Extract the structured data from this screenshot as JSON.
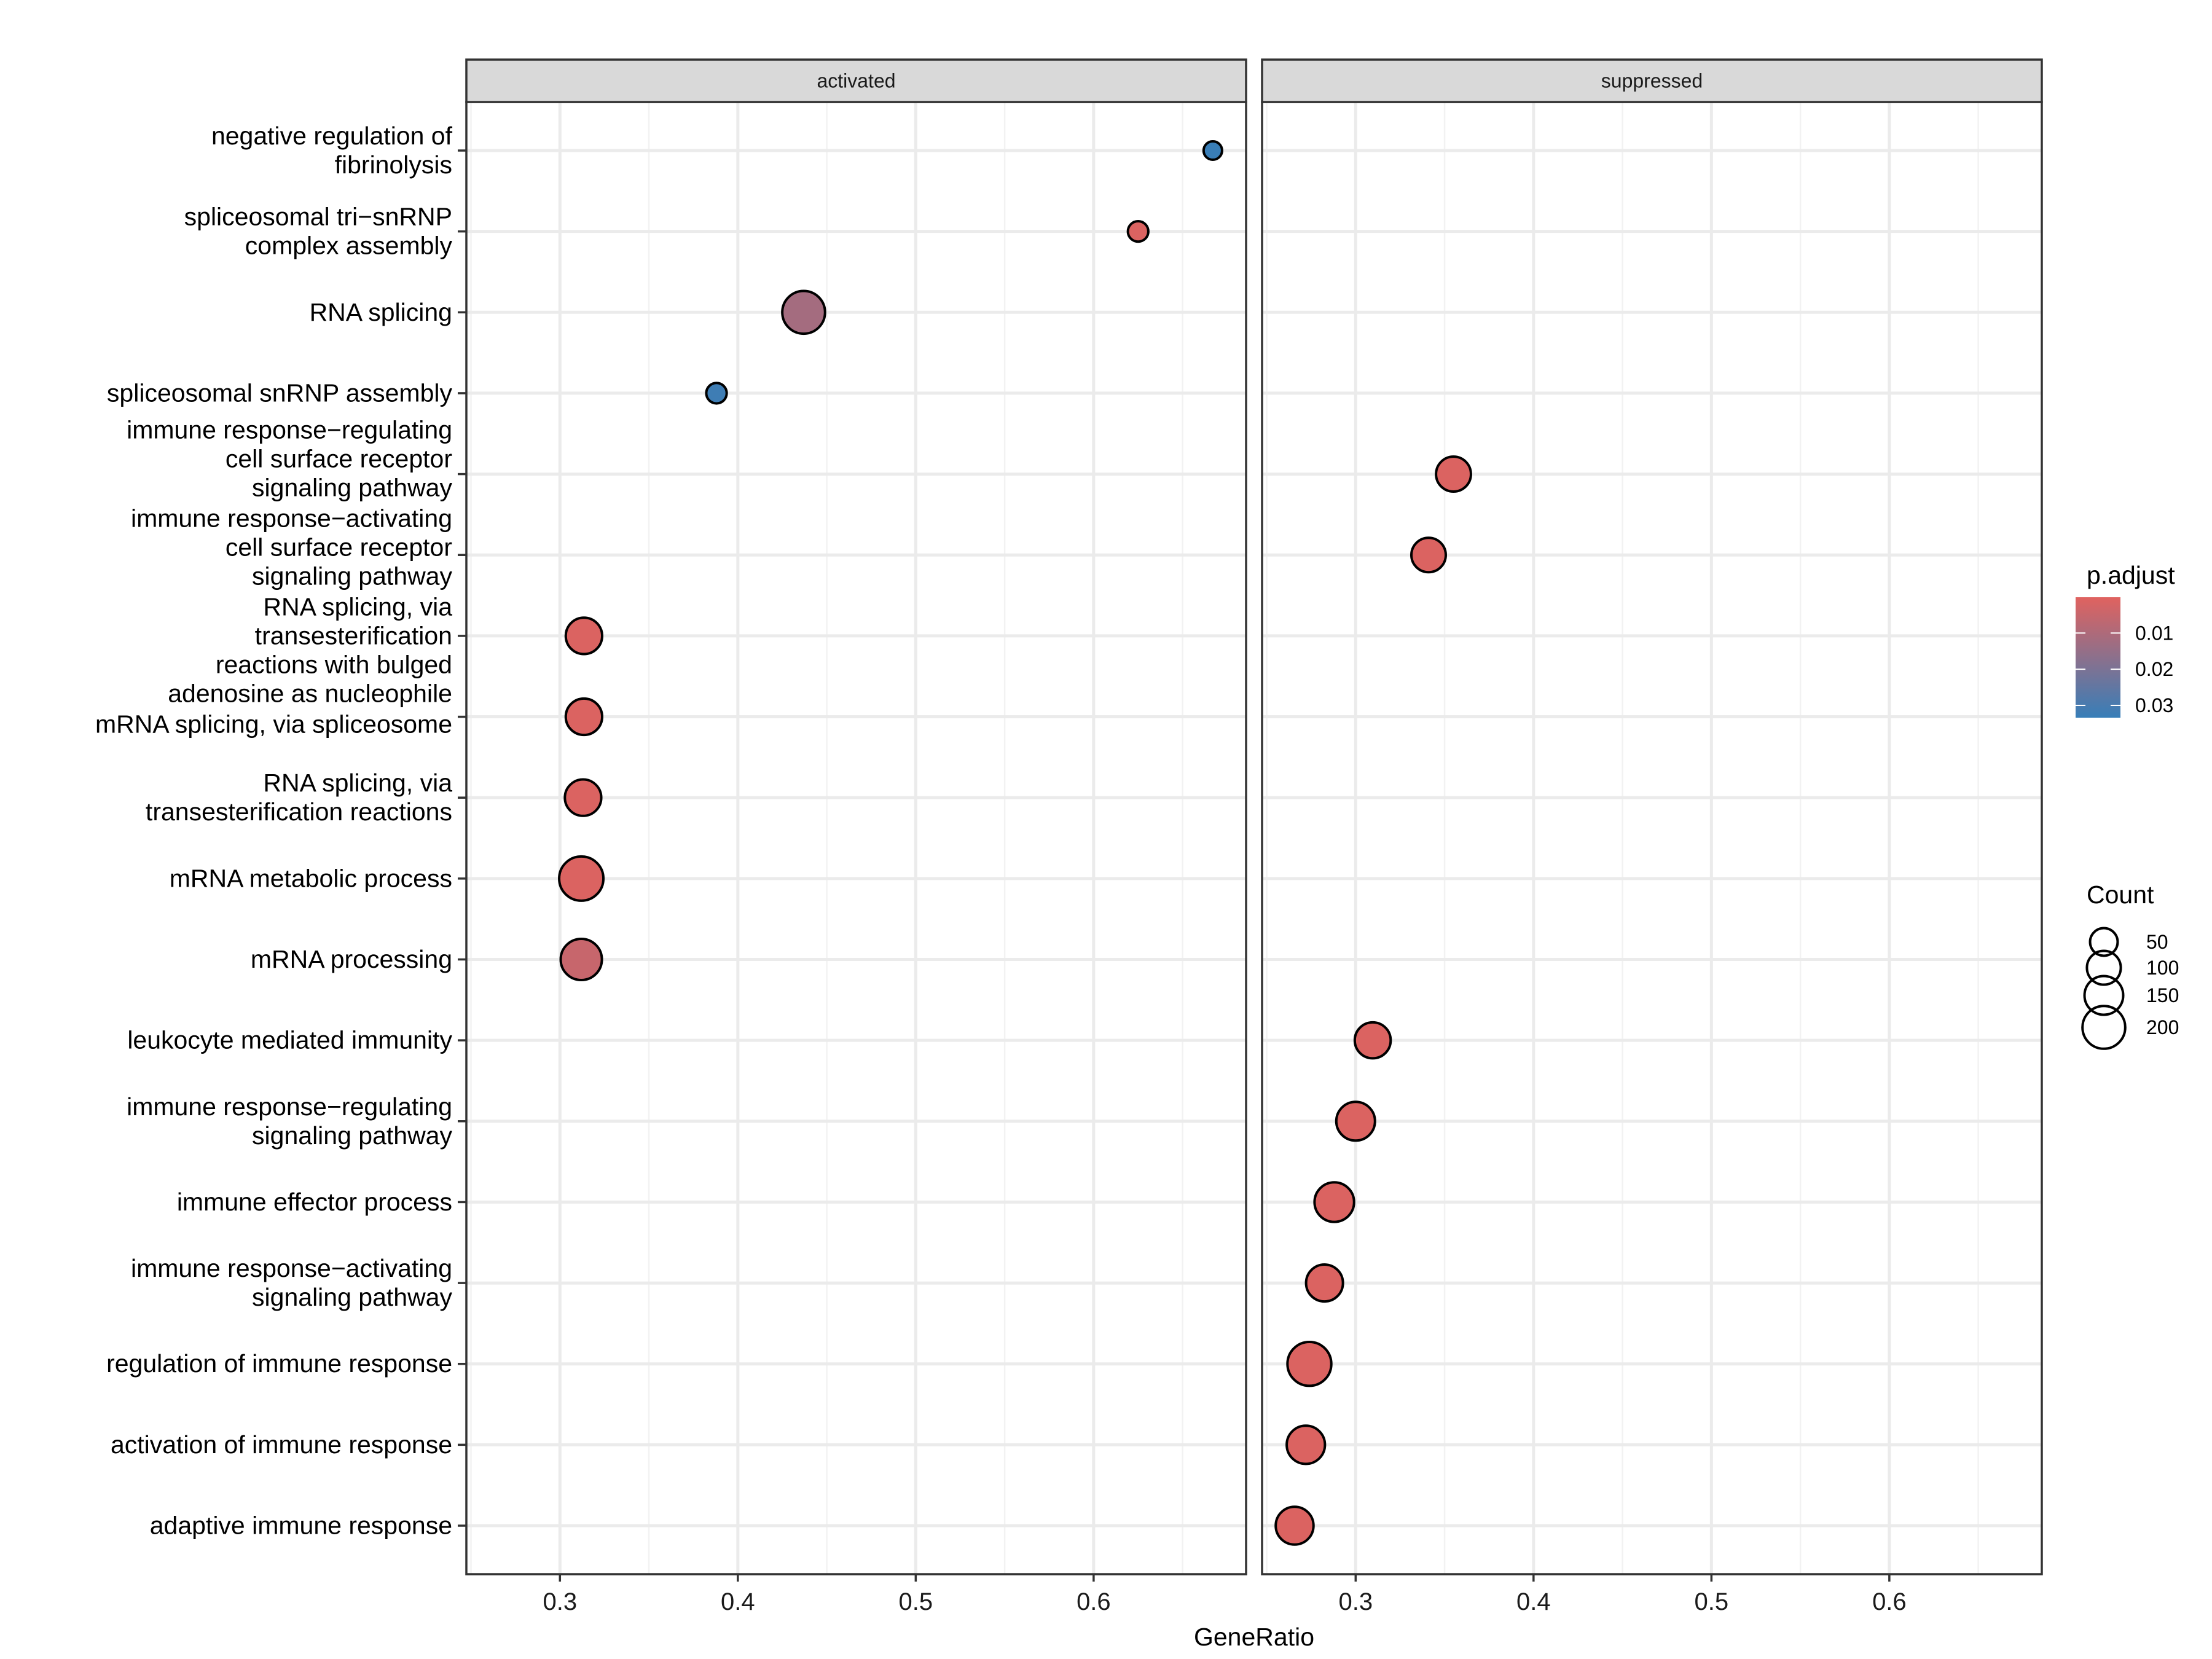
{
  "chart_data": {
    "type": "scatter",
    "xlabel": "GeneRatio",
    "ylabel": "",
    "xlim": [
      0.2474,
      0.6857
    ],
    "x_ticks": [
      "0.3",
      "0.4",
      "0.5",
      "0.6"
    ],
    "x_tick_values": [
      0.3,
      0.4,
      0.5,
      0.6
    ],
    "grid": true,
    "facets": [
      "activated",
      "suppressed"
    ],
    "categories": [
      [
        "negative regulation of",
        "fibrinolysis"
      ],
      [
        "spliceosomal tri−snRNP",
        "complex assembly"
      ],
      [
        "RNA splicing"
      ],
      [
        "spliceosomal snRNP assembly"
      ],
      [
        "immune response−regulating",
        "cell surface receptor",
        "signaling pathway"
      ],
      [
        "immune response−activating",
        "cell surface receptor",
        "signaling pathway"
      ],
      [
        "RNA splicing, via",
        "transesterification",
        "reactions with bulged",
        "adenosine as nucleophile"
      ],
      [
        "mRNA splicing, via spliceosome"
      ],
      [
        "RNA splicing, via",
        "transesterification reactions"
      ],
      [
        "mRNA metabolic process"
      ],
      [
        "mRNA processing"
      ],
      [
        "leukocyte mediated immunity"
      ],
      [
        "immune response−regulating",
        "signaling pathway"
      ],
      [
        "immune effector process"
      ],
      [
        "immune response−activating",
        "signaling pathway"
      ],
      [
        "regulation of immune response"
      ],
      [
        "activation of immune response"
      ],
      [
        "adaptive immune response"
      ]
    ],
    "points": [
      {
        "facet": "activated",
        "row": 0,
        "x": 0.667,
        "count": 8,
        "p_adjust": 0.033
      },
      {
        "facet": "activated",
        "row": 1,
        "x": 0.625,
        "count": 14,
        "p_adjust": 0.001
      },
      {
        "facet": "activated",
        "row": 2,
        "x": 0.437,
        "count": 200,
        "p_adjust": 0.012
      },
      {
        "facet": "activated",
        "row": 3,
        "x": 0.388,
        "count": 14,
        "p_adjust": 0.032
      },
      {
        "facet": "suppressed",
        "row": 4,
        "x": 0.355,
        "count": 110,
        "p_adjust": 0.001
      },
      {
        "facet": "suppressed",
        "row": 5,
        "x": 0.341,
        "count": 105,
        "p_adjust": 0.001
      },
      {
        "facet": "activated",
        "row": 6,
        "x": 0.3135,
        "count": 125,
        "p_adjust": 0.001
      },
      {
        "facet": "activated",
        "row": 7,
        "x": 0.3135,
        "count": 125,
        "p_adjust": 0.001
      },
      {
        "facet": "activated",
        "row": 8,
        "x": 0.313,
        "count": 125,
        "p_adjust": 0.001
      },
      {
        "facet": "activated",
        "row": 9,
        "x": 0.312,
        "count": 220,
        "p_adjust": 0.001
      },
      {
        "facet": "activated",
        "row": 10,
        "x": 0.312,
        "count": 180,
        "p_adjust": 0.005
      },
      {
        "facet": "suppressed",
        "row": 11,
        "x": 0.3096,
        "count": 120,
        "p_adjust": 0.001
      },
      {
        "facet": "suppressed",
        "row": 12,
        "x": 0.3,
        "count": 150,
        "p_adjust": 0.001
      },
      {
        "facet": "suppressed",
        "row": 13,
        "x": 0.288,
        "count": 160,
        "p_adjust": 0.001
      },
      {
        "facet": "suppressed",
        "row": 14,
        "x": 0.2825,
        "count": 130,
        "p_adjust": 0.001
      },
      {
        "facet": "suppressed",
        "row": 15,
        "x": 0.274,
        "count": 215,
        "p_adjust": 0.001
      },
      {
        "facet": "suppressed",
        "row": 16,
        "x": 0.272,
        "count": 145,
        "p_adjust": 0.001
      },
      {
        "facet": "suppressed",
        "row": 17,
        "x": 0.2657,
        "count": 140,
        "p_adjust": 0.001
      }
    ],
    "color_legend": {
      "title": "p.adjust",
      "limits": [
        0.0001,
        0.0334
      ],
      "low_color": "#E0625F",
      "high_color": "#377EB8",
      "ticks": [
        "0.01",
        "0.02",
        "0.03"
      ],
      "tick_values": [
        0.01,
        0.02,
        0.03
      ]
    },
    "size_legend": {
      "title": "Count",
      "labels": [
        "50",
        "100",
        "150",
        "200"
      ],
      "values": [
        50,
        100,
        150,
        200
      ]
    },
    "legend_position": "right"
  }
}
